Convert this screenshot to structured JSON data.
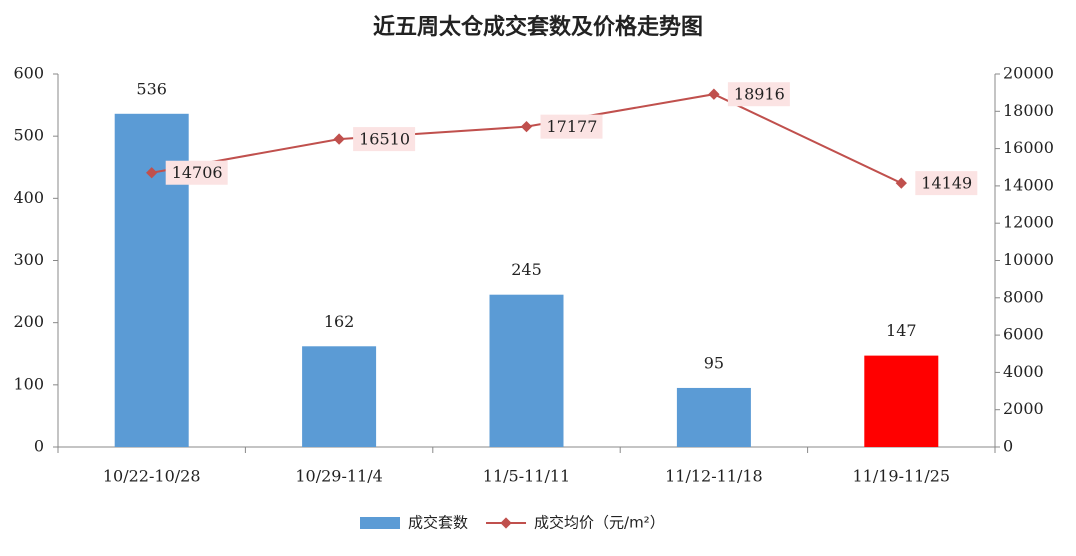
{
  "chart_data": {
    "type": "bar-line",
    "title": "近五周太仓成交套数及价格走势图",
    "categories": [
      "10/22-10/28",
      "10/29-11/4",
      "11/5-11/11",
      "11/12-11/18",
      "11/19-11/25"
    ],
    "series": [
      {
        "name": "成交套数",
        "type": "bar",
        "color": "#5b9bd5",
        "colors": [
          "#5b9bd5",
          "#5b9bd5",
          "#5b9bd5",
          "#5b9bd5",
          "#ff0000"
        ],
        "values": [
          536,
          162,
          245,
          95,
          147
        ]
      },
      {
        "name": "成交均价（元/m²）",
        "type": "line",
        "axis": "y2",
        "color": "#c0504d",
        "values": [
          14706,
          16510,
          17177,
          18916,
          14149
        ]
      }
    ],
    "ylim": [
      0,
      600
    ],
    "yticks": [
      0,
      100,
      200,
      300,
      400,
      500,
      600
    ],
    "y2lim": [
      0,
      20000
    ],
    "y2ticks": [
      0,
      2000,
      4000,
      6000,
      8000,
      10000,
      12000,
      14000,
      16000,
      18000,
      20000
    ],
    "legend": "bottom"
  }
}
